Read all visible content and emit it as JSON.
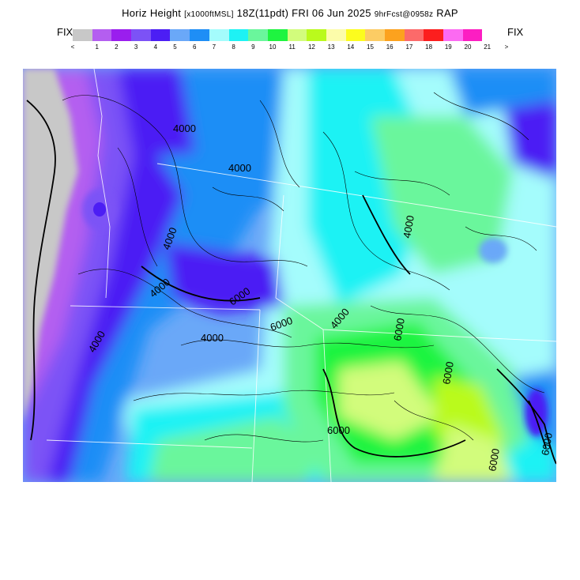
{
  "header": {
    "t1": "Horiz Height",
    "t2": "[x1000ftMSL]",
    "t3": "18Z(11pdt)",
    "t4": "FRI 06 Jun 2025",
    "t5": "9hrFcst@0958z",
    "t6": "RAP"
  },
  "legend": {
    "fix_left": "FIX",
    "fix_right": "FIX",
    "lt": "<",
    "gt": ">",
    "labels": [
      "1",
      "2",
      "3",
      "4",
      "5",
      "6",
      "7",
      "8",
      "9",
      "10",
      "11",
      "12",
      "13",
      "14",
      "15",
      "16",
      "17",
      "18",
      "19",
      "20",
      "21"
    ],
    "colors": [
      "#c8c8c8",
      "#b45ef0",
      "#9a1eee",
      "#7c52f6",
      "#4c1ef4",
      "#6aa8f8",
      "#1e8ef6",
      "#a4fcfc",
      "#1ef2f4",
      "#6af69c",
      "#1ef440",
      "#d2fc7c",
      "#bafa1c",
      "#fcfcaa",
      "#fcfc1e",
      "#fccc64",
      "#fca21e",
      "#fc6a6a",
      "#fc1e1e",
      "#fc6af2",
      "#fc1ec2"
    ]
  },
  "map": {
    "contour_labels": [
      "4000",
      "4000",
      "4000",
      "4000",
      "6000",
      "4000",
      "4000",
      "6000",
      "4000",
      "6000",
      "6000",
      "6000",
      "6000",
      "6000",
      "4000"
    ]
  }
}
